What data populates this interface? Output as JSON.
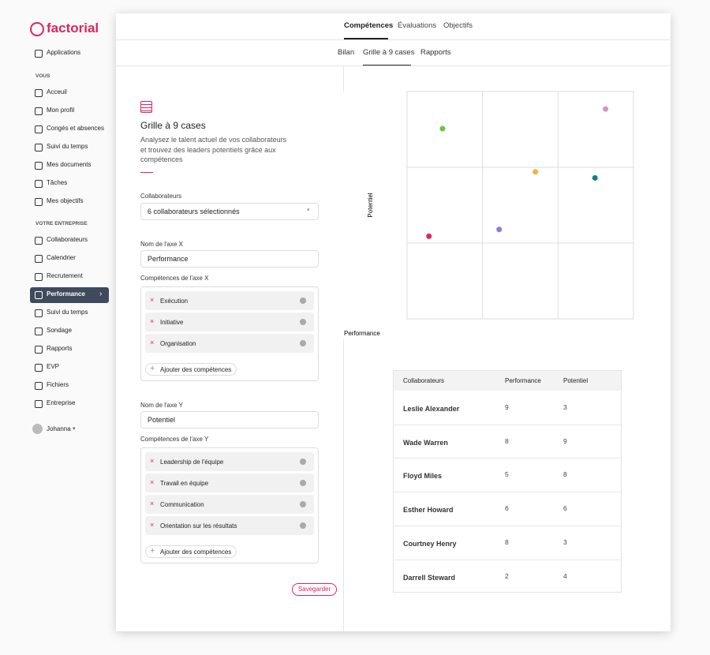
{
  "sidebar": {
    "logo": "factorial",
    "top_items": [
      "Applications"
    ],
    "sections": [
      {
        "title": "VOUS",
        "items": [
          "Acceuil",
          "Mon profil",
          "Congés et absences",
          "Suivi du temps",
          "Mes documents",
          "Tâches",
          "Mes objectifs"
        ]
      },
      {
        "title": "VOTRE ENTREPRISE",
        "items": [
          "Collaborateurs",
          "Calendrier",
          "Recrutement",
          "Performance",
          "Suivi du temps",
          "Sondage",
          "Rapports",
          "EVP",
          "Fichiers",
          "Entreprise"
        ]
      }
    ],
    "active_item": "Performance",
    "user": "Johanna"
  },
  "tabs": [
    "Compétences",
    "Évaluations",
    "Objectifs"
  ],
  "subtabs": [
    "Bilan",
    "Grille à 9 cases",
    "Rapports"
  ],
  "form": {
    "title": "Grille à 9 cases",
    "description": "Analysez le talent actuel de vos collaborateurs et trouvez des leaders potentiels grâce aux compétences",
    "collab_label": "Collaborateurs",
    "collab_value": "6 collaborateurs sélectionnés",
    "x_name_label": "Nom de l'axe X",
    "x_name_value": "Performance",
    "x_comp_label": "Compétences de l'axe X",
    "x_comps": [
      "Exécution",
      "Initiative",
      "Organisation"
    ],
    "x_add": "Ajouter des compétences",
    "y_name_label": "Nom de l'axe Y",
    "y_name_value": "Potentiel",
    "y_comp_label": "Compétences de l'axe Y",
    "y_comps": [
      "Leadership de l'équipe",
      "Travail en équipe",
      "Communication",
      "Orientation sur les résultats"
    ],
    "y_add": "Ajouter des compétences",
    "save": "Savegarder"
  },
  "chart_data": {
    "type": "scatter",
    "x_label": "Performance",
    "y_label": "Potentiel",
    "xlim": [
      0,
      3
    ],
    "ylim": [
      0,
      3
    ],
    "x": [
      0.47,
      2.63,
      1.7,
      2.49,
      0.29,
      1.22
    ],
    "values": [
      2.51,
      2.77,
      1.94,
      1.86,
      1.09,
      1.18
    ],
    "colors": [
      "#6cc24a",
      "#d98fc8",
      "#f0b43c",
      "#137b8c",
      "#e0245e",
      "#8a7fd8"
    ]
  },
  "table": {
    "headers": [
      "Collaborateurs",
      "Performance",
      "Potentiel"
    ],
    "rows": [
      [
        "Leslie Alexander",
        "9",
        "3"
      ],
      [
        "Wade Warren",
        "8",
        "9"
      ],
      [
        "Floyd Miles",
        "5",
        "8"
      ],
      [
        "Esther Howard",
        "6",
        "6"
      ],
      [
        "Courtney Henry",
        "8",
        "3"
      ],
      [
        "Darrell Steward",
        "2",
        "4"
      ]
    ]
  }
}
